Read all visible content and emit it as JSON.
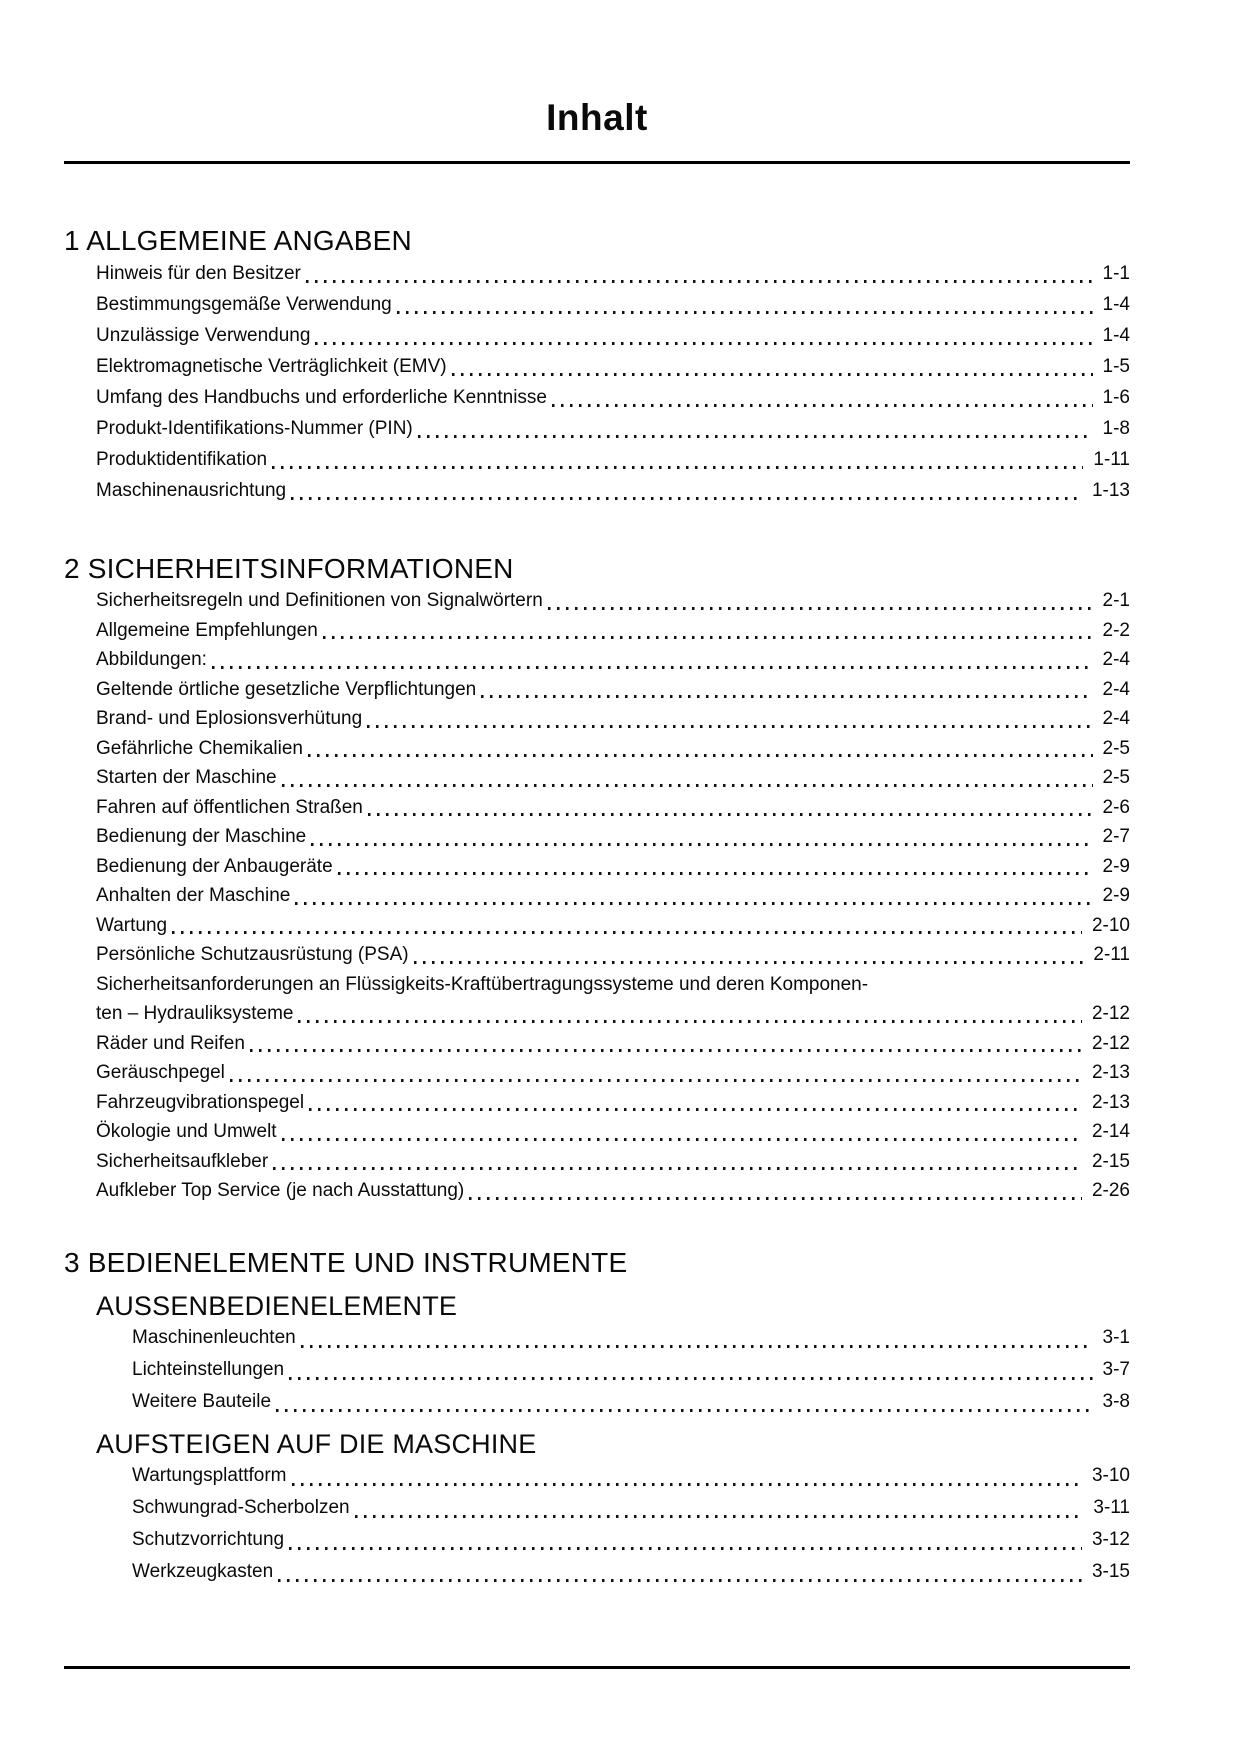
{
  "document": {
    "title": "Inhalt"
  },
  "colors": {
    "text": "#0a0a0a",
    "background": "#ffffff",
    "rule": "#000000"
  },
  "toc": {
    "sections": [
      {
        "heading": "1 ALLGEMEINE ANGABEN",
        "items": [
          {
            "title": "Hinweis für den Besitzer",
            "page": "1-1"
          },
          {
            "title": "Bestimmungsgemäße Verwendung",
            "page": "1-4"
          },
          {
            "title": "Unzulässige Verwendung",
            "page": "1-4"
          },
          {
            "title": "Elektromagnetische Verträglichkeit (EMV)",
            "page": "1-5"
          },
          {
            "title": "Umfang des Handbuchs und erforderliche Kenntnisse",
            "page": "1-6"
          },
          {
            "title": "Produkt-Identifikations-Nummer (PIN)",
            "page": "1-8"
          },
          {
            "title": "Produktidentifikation",
            "page": "1-11"
          },
          {
            "title": "Maschinenausrichtung",
            "page": "1-13"
          }
        ]
      },
      {
        "heading": "2 SICHERHEITSINFORMATIONEN",
        "items": [
          {
            "title": "Sicherheitsregeln und Definitionen von Signalwörtern",
            "page": "2-1"
          },
          {
            "title": "Allgemeine Empfehlungen",
            "page": "2-2"
          },
          {
            "title": "Abbildungen:",
            "page": "2-4"
          },
          {
            "title": "Geltende örtliche gesetzliche Verpflichtungen",
            "page": "2-4"
          },
          {
            "title": "Brand- und Eplosionsverhütung",
            "page": "2-4"
          },
          {
            "title": "Gefährliche Chemikalien",
            "page": "2-5"
          },
          {
            "title": "Starten der Maschine",
            "page": "2-5"
          },
          {
            "title": "Fahren auf öffentlichen Straßen",
            "page": "2-6"
          },
          {
            "title": "Bedienung der Maschine",
            "page": "2-7"
          },
          {
            "title": "Bedienung der Anbaugeräte",
            "page": "2-9"
          },
          {
            "title": "Anhalten der Maschine",
            "page": "2-9"
          },
          {
            "title": "Wartung",
            "page": "2-10"
          },
          {
            "title": "Persönliche Schutzausrüstung (PSA)",
            "page": "2-11"
          },
          {
            "title": "Sicherheitsanforderungen an Flüssigkeits-Kraftübertragungssysteme und deren Komponen-",
            "title_line2": "ten – Hydrauliksysteme",
            "page": "2-12"
          },
          {
            "title": "Räder und Reifen",
            "page": "2-12"
          },
          {
            "title": "Geräuschpegel",
            "page": "2-13"
          },
          {
            "title": "Fahrzeugvibrationspegel",
            "page": "2-13"
          },
          {
            "title": "Ökologie und Umwelt",
            "page": "2-14"
          },
          {
            "title": "Sicherheitsaufkleber",
            "page": "2-15"
          },
          {
            "title": "Aufkleber Top Service (je nach Ausstattung)",
            "page": "2-26"
          }
        ]
      },
      {
        "heading": "3 BEDIENELEMENTE UND INSTRUMENTE",
        "subsections": [
          {
            "heading": "AUSSENBEDIENELEMENTE",
            "items": [
              {
                "title": "Maschinenleuchten",
                "page": "3-1"
              },
              {
                "title": "Lichteinstellungen",
                "page": "3-7"
              },
              {
                "title": "Weitere Bauteile",
                "page": "3-8"
              }
            ]
          },
          {
            "heading": "AUFSTEIGEN AUF DIE MASCHINE",
            "items": [
              {
                "title": "Wartungsplattform",
                "page": "3-10"
              },
              {
                "title": "Schwungrad-Scherbolzen",
                "page": "3-11"
              },
              {
                "title": "Schutzvorrichtung",
                "page": "3-12"
              },
              {
                "title": "Werkzeugkasten",
                "page": "3-15"
              }
            ]
          }
        ]
      }
    ]
  }
}
